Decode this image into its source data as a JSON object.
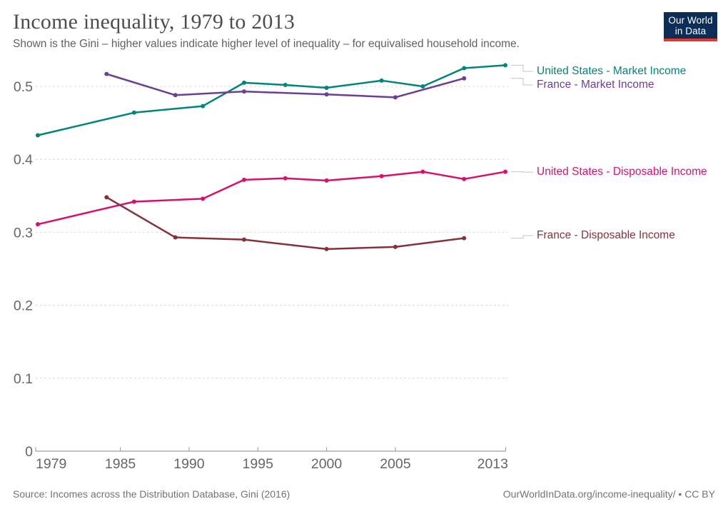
{
  "header": {
    "title": "Income inequality, 1979 to 2013",
    "subtitle": "Shown is the Gini – higher values indicate higher level of inequality – for equivalised household income.",
    "logo": {
      "line1": "Our World",
      "line2": "in Data",
      "bg_color": "#0C2D56",
      "accent_color": "#E03931"
    }
  },
  "footer": {
    "source": "Source: Incomes across the Distribution Database, Gini (2016)",
    "credit": "OurWorldInData.org/income-inequality/ • CC BY"
  },
  "chart_data": {
    "type": "line",
    "title": "Income inequality, 1979 to 2013",
    "xlabel": "",
    "ylabel": "",
    "xlim": [
      1979,
      2013
    ],
    "ylim": [
      0,
      0.54
    ],
    "x_ticks": [
      1979,
      1985,
      1990,
      1995,
      2000,
      2005,
      2013
    ],
    "y_ticks": [
      0,
      0.1,
      0.2,
      0.3,
      0.4,
      0.5
    ],
    "grid": "horizontal dashed",
    "legend_position": "right of lines, label-at-line-end",
    "grid_color": "#d9d9d9",
    "axis_color": "#a1a1a1",
    "tick_label_color": "#666666",
    "connector_color": "#c4c4c4",
    "series": [
      {
        "name": "United States - Market Income",
        "color": "#00847E",
        "x": [
          1979,
          1986,
          1991,
          1994,
          1997,
          2000,
          2004,
          2007,
          2010,
          2013
        ],
        "values": [
          0.433,
          0.464,
          0.473,
          0.505,
          0.502,
          0.498,
          0.508,
          0.5,
          0.525,
          0.529
        ]
      },
      {
        "name": "France - Market Income",
        "color": "#6D3E91",
        "x": [
          1984,
          1989,
          1994,
          2000,
          2005,
          2010
        ],
        "values": [
          0.517,
          0.488,
          0.493,
          0.489,
          0.485,
          0.511
        ]
      },
      {
        "name": "United States - Disposable Income",
        "color": "#D8106C",
        "x": [
          1979,
          1986,
          1991,
          1994,
          1997,
          2000,
          2004,
          2007,
          2010,
          2013
        ],
        "values": [
          0.311,
          0.342,
          0.346,
          0.372,
          0.374,
          0.371,
          0.377,
          0.383,
          0.373,
          0.383
        ]
      },
      {
        "name": "France - Disposable Income",
        "color": "#883039",
        "x": [
          1984,
          1989,
          1994,
          2000,
          2005,
          2010
        ],
        "values": [
          0.348,
          0.293,
          0.29,
          0.277,
          0.28,
          0.292
        ]
      }
    ]
  }
}
